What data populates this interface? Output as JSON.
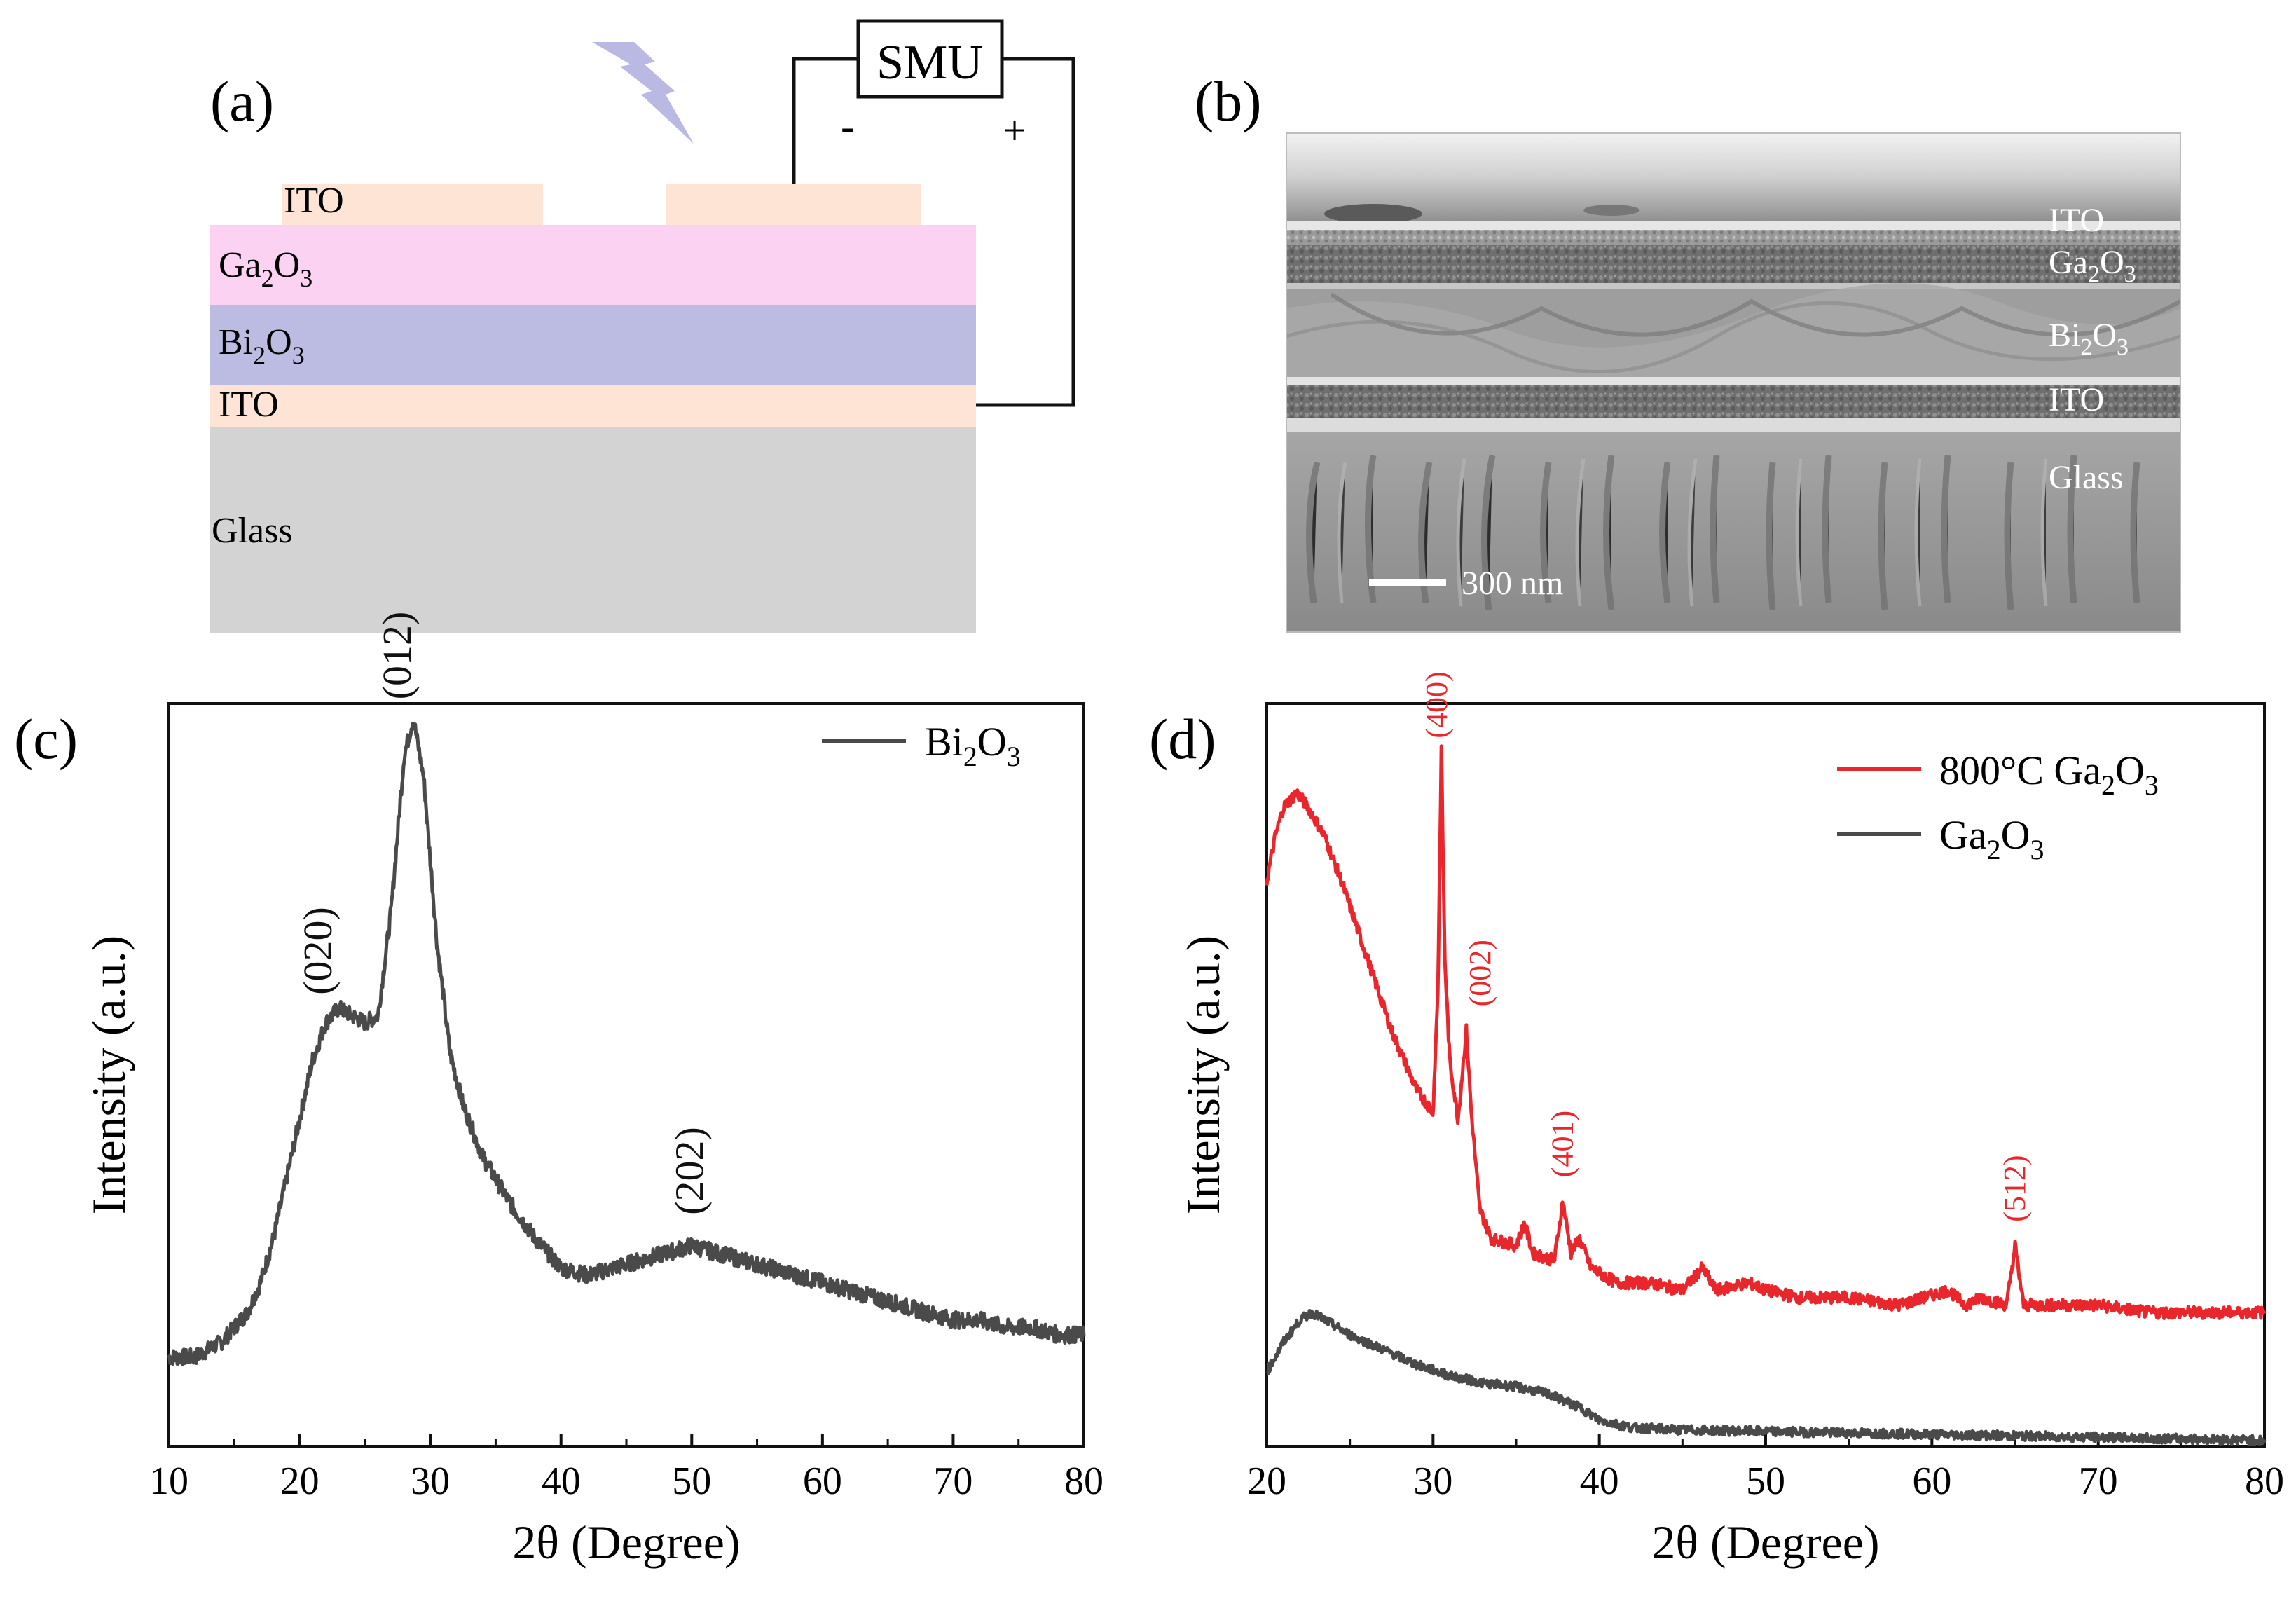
{
  "panels": {
    "a": {
      "label": "(a)",
      "smu": "SMU",
      "minus": "-",
      "plus": "+",
      "layers": {
        "ito_top": "ITO",
        "ga2o3": "Ga",
        "bi2o3": "Bi",
        "ito_bottom": "ITO",
        "glass": "Glass"
      },
      "sub_2": "2",
      "sub_3": "3",
      "o_letter": "O",
      "colors": {
        "ito": "#fde4d4",
        "ga2o3": "#fbd2f1",
        "bi2o3": "#bcbce2",
        "glass": "#d3d3d3",
        "light": "#b9b9e3"
      }
    },
    "b": {
      "label": "(b)",
      "layers": [
        "ITO",
        "Ga",
        "Bi",
        "ITO",
        "Glass"
      ],
      "scale_bar": "300 nm"
    },
    "c": {
      "label": "(c)",
      "legend_name": "Bi",
      "ylabel": "Intensity (a.u.)",
      "xlabel": "2θ (Degree)",
      "peaks": [
        {
          "label": "(020)",
          "x": 22
        },
        {
          "label": "(012)",
          "x": 28.5
        },
        {
          "label": "(202)",
          "x": 50
        }
      ],
      "line_color": "#4a4a4a"
    },
    "d": {
      "label": "(d)",
      "legend_red_prefix": "800°C Ga",
      "legend_gray": "Ga",
      "ylabel": "Intensity (a.u.)",
      "xlabel": "2θ (Degree)",
      "peaks": [
        {
          "label": "(400)",
          "x": 30.5
        },
        {
          "label": "(002)",
          "x": 32
        },
        {
          "label": "(401)",
          "x": 37.8
        },
        {
          "label": "(512)",
          "x": 65
        }
      ],
      "red_color": "#e8262b",
      "gray_color": "#4a4a4a"
    }
  },
  "chart_data": [
    {
      "type": "line",
      "title": "(c)",
      "xlabel": "2θ (Degree)",
      "ylabel": "Intensity (a.u.)",
      "xlim": [
        10,
        80
      ],
      "xticks": [
        10,
        20,
        30,
        40,
        50,
        60,
        70,
        80
      ],
      "ylim": [
        0,
        1
      ],
      "series": [
        {
          "name": "Bi2O3",
          "x": [
            10,
            12,
            14,
            16,
            17,
            18,
            19,
            20,
            21,
            22,
            23,
            24,
            25,
            26,
            27,
            28,
            28.7,
            29.5,
            30.5,
            31.5,
            32.5,
            34,
            36,
            38,
            40,
            42,
            44,
            46,
            48,
            50,
            52,
            54,
            56,
            58,
            60,
            62,
            64,
            66,
            68,
            70,
            72,
            74,
            76,
            78,
            80
          ],
          "y": [
            0.12,
            0.12,
            0.14,
            0.18,
            0.22,
            0.28,
            0.36,
            0.44,
            0.52,
            0.57,
            0.59,
            0.58,
            0.57,
            0.58,
            0.72,
            0.93,
            0.98,
            0.9,
            0.68,
            0.53,
            0.46,
            0.39,
            0.33,
            0.28,
            0.24,
            0.23,
            0.24,
            0.25,
            0.26,
            0.27,
            0.26,
            0.25,
            0.24,
            0.23,
            0.22,
            0.21,
            0.2,
            0.19,
            0.18,
            0.17,
            0.17,
            0.16,
            0.16,
            0.15,
            0.15
          ]
        }
      ],
      "annotations": [
        "(020)",
        "(012)",
        "(202)"
      ]
    },
    {
      "type": "line",
      "title": "(d)",
      "xlabel": "2θ (Degree)",
      "ylabel": "Intensity (a.u.)",
      "xlim": [
        20,
        80
      ],
      "xticks": [
        20,
        30,
        40,
        50,
        60,
        70,
        80
      ],
      "ylim": [
        0,
        1
      ],
      "series": [
        {
          "name": "800°C Ga2O3",
          "x": [
            20,
            20.5,
            21,
            21.8,
            22.5,
            23.5,
            24.5,
            26,
            27.5,
            29,
            30,
            30.3,
            30.5,
            30.7,
            31,
            31.5,
            32,
            32.3,
            32.8,
            33.5,
            35,
            35.5,
            36,
            37.3,
            37.8,
            38.3,
            38.8,
            39.5,
            41,
            43,
            45,
            46.2,
            47,
            49,
            50,
            52,
            55,
            58,
            61,
            62,
            63,
            64.5,
            65,
            65.5,
            66,
            68,
            70,
            73,
            76,
            80
          ],
          "y": [
            0.76,
            0.82,
            0.86,
            0.88,
            0.86,
            0.82,
            0.76,
            0.66,
            0.56,
            0.48,
            0.45,
            0.62,
            0.94,
            0.66,
            0.52,
            0.44,
            0.56,
            0.45,
            0.32,
            0.28,
            0.27,
            0.3,
            0.26,
            0.25,
            0.33,
            0.26,
            0.28,
            0.24,
            0.22,
            0.22,
            0.21,
            0.24,
            0.21,
            0.22,
            0.21,
            0.2,
            0.2,
            0.19,
            0.21,
            0.19,
            0.2,
            0.19,
            0.27,
            0.19,
            0.19,
            0.19,
            0.19,
            0.18,
            0.18,
            0.18
          ]
        },
        {
          "name": "Ga2O3",
          "x": [
            20,
            21,
            22,
            22.7,
            23.5,
            25,
            27,
            29,
            31,
            33,
            35,
            37,
            39,
            40,
            42,
            45,
            50,
            55,
            60,
            65,
            70,
            75,
            80
          ],
          "y": [
            0.1,
            0.14,
            0.17,
            0.18,
            0.17,
            0.15,
            0.13,
            0.11,
            0.095,
            0.085,
            0.08,
            0.07,
            0.05,
            0.035,
            0.025,
            0.022,
            0.02,
            0.018,
            0.016,
            0.014,
            0.012,
            0.01,
            0.008
          ]
        }
      ],
      "annotations": [
        "(400)",
        "(002)",
        "(401)",
        "(512)"
      ]
    }
  ]
}
